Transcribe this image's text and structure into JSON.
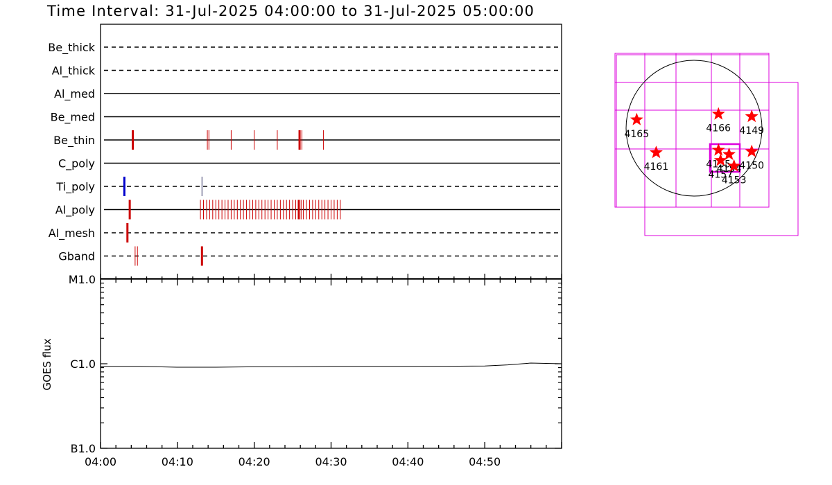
{
  "title": "Time Interval: 31-Jul-2025 04:00:00 to 31-Jul-2025 05:00:00",
  "colors": {
    "axis": "#000000",
    "event": "#cc0000",
    "event_alt": "#0000cc",
    "fov": "#dd00dd",
    "star": "#ff0000"
  },
  "chart_data": [
    {
      "type": "timeline",
      "time_range_minutes": [
        0,
        60
      ],
      "channels": [
        {
          "name": "Be_thick",
          "style": "dashed",
          "events": []
        },
        {
          "name": "Al_thick",
          "style": "dashed",
          "events": []
        },
        {
          "name": "Al_med",
          "style": "solid",
          "events": []
        },
        {
          "name": "Be_med",
          "style": "solid",
          "events": []
        },
        {
          "name": "Be_thin",
          "style": "solid",
          "events": [
            {
              "t": 4.2,
              "bold": true
            },
            {
              "t": 13.9,
              "bold": false
            },
            {
              "t": 14.1,
              "bold": false
            },
            {
              "t": 17.0,
              "bold": false
            },
            {
              "t": 20.0,
              "bold": false
            },
            {
              "t": 23.0,
              "bold": false
            },
            {
              "t": 25.9,
              "bold": true
            },
            {
              "t": 26.2,
              "bold": false
            },
            {
              "t": 29.0,
              "bold": false
            }
          ]
        },
        {
          "name": "C_poly",
          "style": "solid",
          "events": []
        },
        {
          "name": "Ti_poly",
          "style": "dashed",
          "events": [
            {
              "t": 3.1,
              "bold": true,
              "color": "blue"
            },
            {
              "t": 13.2,
              "bold": false,
              "color": "dark"
            }
          ]
        },
        {
          "name": "Al_poly",
          "style": "solid",
          "events": [
            {
              "t": 3.8,
              "bold": true
            },
            {
              "t": 13.0,
              "bold": false
            },
            {
              "t": 13.4,
              "bold": false
            },
            {
              "t": 13.8,
              "bold": false
            },
            {
              "t": 14.2,
              "bold": false
            },
            {
              "t": 14.6,
              "bold": false
            },
            {
              "t": 15.0,
              "bold": false
            },
            {
              "t": 15.4,
              "bold": false
            },
            {
              "t": 15.8,
              "bold": false
            },
            {
              "t": 16.2,
              "bold": false
            },
            {
              "t": 16.6,
              "bold": false
            },
            {
              "t": 17.0,
              "bold": false
            },
            {
              "t": 17.4,
              "bold": false
            },
            {
              "t": 17.8,
              "bold": false
            },
            {
              "t": 18.2,
              "bold": false
            },
            {
              "t": 18.6,
              "bold": false
            },
            {
              "t": 19.0,
              "bold": false
            },
            {
              "t": 19.4,
              "bold": false
            },
            {
              "t": 19.8,
              "bold": false
            },
            {
              "t": 20.2,
              "bold": false
            },
            {
              "t": 20.6,
              "bold": false
            },
            {
              "t": 21.0,
              "bold": false
            },
            {
              "t": 21.4,
              "bold": false
            },
            {
              "t": 21.8,
              "bold": false
            },
            {
              "t": 22.2,
              "bold": false
            },
            {
              "t": 22.6,
              "bold": false
            },
            {
              "t": 23.0,
              "bold": false
            },
            {
              "t": 23.4,
              "bold": false
            },
            {
              "t": 23.8,
              "bold": false
            },
            {
              "t": 24.2,
              "bold": false
            },
            {
              "t": 24.6,
              "bold": false
            },
            {
              "t": 25.0,
              "bold": false
            },
            {
              "t": 25.4,
              "bold": false
            },
            {
              "t": 25.8,
              "bold": true
            },
            {
              "t": 26.1,
              "bold": false
            },
            {
              "t": 26.4,
              "bold": false
            },
            {
              "t": 26.8,
              "bold": false
            },
            {
              "t": 27.2,
              "bold": false
            },
            {
              "t": 27.6,
              "bold": false
            },
            {
              "t": 28.0,
              "bold": false
            },
            {
              "t": 28.4,
              "bold": false
            },
            {
              "t": 28.8,
              "bold": false
            },
            {
              "t": 29.2,
              "bold": false
            },
            {
              "t": 29.6,
              "bold": false
            },
            {
              "t": 30.0,
              "bold": false
            },
            {
              "t": 30.4,
              "bold": false
            },
            {
              "t": 30.8,
              "bold": false
            },
            {
              "t": 31.2,
              "bold": false
            }
          ]
        },
        {
          "name": "Al_mesh",
          "style": "dashed",
          "events": [
            {
              "t": 3.5,
              "bold": true
            }
          ]
        },
        {
          "name": "Gband",
          "style": "dashed",
          "events": [
            {
              "t": 4.5,
              "bold": false
            },
            {
              "t": 4.8,
              "bold": false
            },
            {
              "t": 13.2,
              "bold": true
            }
          ]
        }
      ]
    },
    {
      "type": "line",
      "ylabel": "GOES flux",
      "y_scale": "log",
      "yticks": [
        {
          "label": "M1.0",
          "value": 1e-05
        },
        {
          "label": "C1.0",
          "value": 1e-06
        },
        {
          "label": "B1.0",
          "value": 1e-07
        }
      ],
      "ylim": [
        1e-07,
        1e-05
      ],
      "xlim": [
        0,
        60
      ],
      "xtick_labels": [
        "04:00",
        "04:10",
        "04:20",
        "04:30",
        "04:40",
        "04:50"
      ],
      "xtick_values": [
        0,
        10,
        20,
        30,
        40,
        50
      ],
      "series": [
        {
          "x": [
            0,
            5,
            10,
            15,
            20,
            25,
            30,
            35,
            40,
            45,
            50,
            53,
            56,
            58,
            60
          ],
          "y": [
            9.3e-07,
            9.3e-07,
            9.1e-07,
            9.1e-07,
            9.2e-07,
            9.2e-07,
            9.3e-07,
            9.3e-07,
            9.3e-07,
            9.35e-07,
            9.4e-07,
            9.7e-07,
            1.02e-06,
            1.01e-06,
            1e-06
          ]
        }
      ]
    },
    {
      "type": "scatter",
      "description_role": "solar disk active region map",
      "disk": {
        "center": [
          0,
          0
        ],
        "radius_arcsec": 960
      },
      "points": [
        {
          "label": "4165",
          "x": -810,
          "y": 120
        },
        {
          "label": "4166",
          "x": 345,
          "y": 200
        },
        {
          "label": "4149",
          "x": 815,
          "y": 165
        },
        {
          "label": "4161",
          "x": -535,
          "y": -345
        },
        {
          "label": "4155",
          "x": 345,
          "y": -310
        },
        {
          "label": "4157",
          "x": 375,
          "y": -455
        },
        {
          "label": "4154",
          "x": 495,
          "y": -370
        },
        {
          "label": "4153",
          "x": 565,
          "y": -535
        },
        {
          "label": "4150",
          "x": 815,
          "y": -330
        }
      ]
    }
  ]
}
